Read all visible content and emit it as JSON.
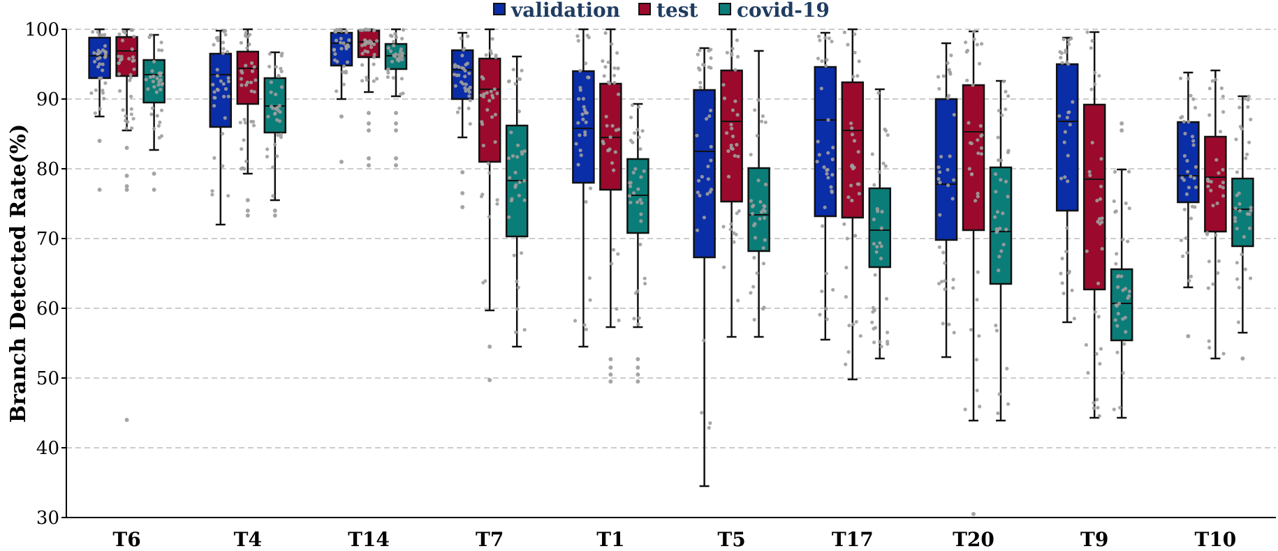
{
  "chart_data": {
    "type": "box",
    "ylabel": "Branch Detected Rate(%)",
    "xlabel": "",
    "ylim": [
      30,
      100
    ],
    "yticks": [
      30,
      40,
      50,
      60,
      70,
      80,
      90,
      100
    ],
    "grid": "horizontal dashed",
    "legend_position": "top-center",
    "categories": [
      "T6",
      "T4",
      "T14",
      "T7",
      "T1",
      "T5",
      "T17",
      "T20",
      "T9",
      "T10"
    ],
    "series": [
      {
        "name": "validation",
        "color": "#0a2da8",
        "boxes": [
          {
            "min": 87.5,
            "q1": 93,
            "median": 96.2,
            "q3": 98.8,
            "max": 100,
            "outliers": [
              84,
              77
            ]
          },
          {
            "min": 72,
            "q1": 86,
            "median": 93.5,
            "q3": 96.5,
            "max": 99.8,
            "outliers": []
          },
          {
            "min": 90,
            "q1": 94.8,
            "median": 98,
            "q3": 99.5,
            "max": 100,
            "outliers": [
              87.5,
              81
            ]
          },
          {
            "min": 84.5,
            "q1": 90,
            "median": 94.2,
            "q3": 97,
            "max": 99.5,
            "outliers": [
              79.5,
              76.5,
              74.5
            ]
          },
          {
            "min": 54.5,
            "q1": 78,
            "median": 85.8,
            "q3": 94,
            "max": 100,
            "outliers": []
          },
          {
            "min": 34.5,
            "q1": 67.3,
            "median": 82.5,
            "q3": 91.3,
            "max": 97.3,
            "outliers": []
          },
          {
            "min": 55.5,
            "q1": 73.2,
            "median": 87,
            "q3": 94.6,
            "max": 99.5,
            "outliers": []
          },
          {
            "min": 53,
            "q1": 69.8,
            "median": 77.8,
            "q3": 90,
            "max": 98,
            "outliers": []
          },
          {
            "min": 58,
            "q1": 74,
            "median": 86.8,
            "q3": 95,
            "max": 98.8,
            "outliers": []
          },
          {
            "min": 63,
            "q1": 75.2,
            "median": 79,
            "q3": 86.7,
            "max": 93.8,
            "outliers": [
              56
            ]
          }
        ]
      },
      {
        "name": "test",
        "color": "#9b0a2c",
        "boxes": [
          {
            "min": 85.5,
            "q1": 93.3,
            "median": 96.9,
            "q3": 98.9,
            "max": 100,
            "outliers": [
              83,
              79,
              77.5,
              77,
              44
            ]
          },
          {
            "min": 79.3,
            "q1": 89.3,
            "median": 94.4,
            "q3": 96.8,
            "max": 100,
            "outliers": [
              75.5,
              74,
              73.3
            ]
          },
          {
            "min": 91,
            "q1": 96,
            "median": 98.2,
            "q3": 99.8,
            "max": 100,
            "outliers": [
              88,
              86.5,
              85.5,
              81.5,
              80.5
            ]
          },
          {
            "min": 59.7,
            "q1": 81,
            "median": 91.4,
            "q3": 95.8,
            "max": 100,
            "outliers": [
              54.5,
              49.7
            ]
          },
          {
            "min": 57.3,
            "q1": 77,
            "median": 84.5,
            "q3": 92.2,
            "max": 100,
            "outliers": [
              52.7,
              51.5,
              50.5,
              49.5
            ]
          },
          {
            "min": 55.9,
            "q1": 75.3,
            "median": 86.8,
            "q3": 94.1,
            "max": 100,
            "outliers": []
          },
          {
            "min": 49.8,
            "q1": 73,
            "median": 85.5,
            "q3": 92.4,
            "max": 100,
            "outliers": []
          },
          {
            "min": 43.9,
            "q1": 71.2,
            "median": 85.3,
            "q3": 92,
            "max": 99.7,
            "outliers": [
              30.5
            ]
          },
          {
            "min": 44.3,
            "q1": 62.7,
            "median": 78.5,
            "q3": 89.2,
            "max": 99.6,
            "outliers": []
          },
          {
            "min": 52.8,
            "q1": 71,
            "median": 78.8,
            "q3": 84.6,
            "max": 94.1,
            "outliers": []
          }
        ]
      },
      {
        "name": "covid-19",
        "color": "#0b7d78",
        "boxes": [
          {
            "min": 82.7,
            "q1": 89.5,
            "median": 93.5,
            "q3": 95.6,
            "max": 99.2,
            "outliers": [
              79.3,
              77
            ]
          },
          {
            "min": 75.5,
            "q1": 85.2,
            "median": 89,
            "q3": 93,
            "max": 96.7,
            "outliers": [
              74,
              73.3
            ]
          },
          {
            "min": 90.4,
            "q1": 94.3,
            "median": 96.2,
            "q3": 97.9,
            "max": 100,
            "outliers": [
              88,
              86.5,
              85.5,
              81.5,
              80.5
            ]
          },
          {
            "min": 54.5,
            "q1": 70.3,
            "median": 78.3,
            "q3": 86.2,
            "max": 96.1,
            "outliers": []
          },
          {
            "min": 57.3,
            "q1": 70.8,
            "median": 76.2,
            "q3": 81.4,
            "max": 89.3,
            "outliers": [
              52.7,
              51.5,
              50.5,
              49.5
            ]
          },
          {
            "min": 55.9,
            "q1": 68.2,
            "median": 73.4,
            "q3": 80.1,
            "max": 96.9,
            "outliers": []
          },
          {
            "min": 52.8,
            "q1": 65.9,
            "median": 71.2,
            "q3": 77.2,
            "max": 91.4,
            "outliers": []
          },
          {
            "min": 43.9,
            "q1": 63.5,
            "median": 71,
            "q3": 80.2,
            "max": 92.6,
            "outliers": []
          },
          {
            "min": 44.3,
            "q1": 55.4,
            "median": 60.7,
            "q3": 65.6,
            "max": 79.9,
            "outliers": [
              86.5,
              85.5
            ]
          },
          {
            "min": 56.5,
            "q1": 68.9,
            "median": 74.2,
            "q3": 78.6,
            "max": 90.4,
            "outliers": [
              52.8
            ]
          }
        ]
      }
    ]
  }
}
